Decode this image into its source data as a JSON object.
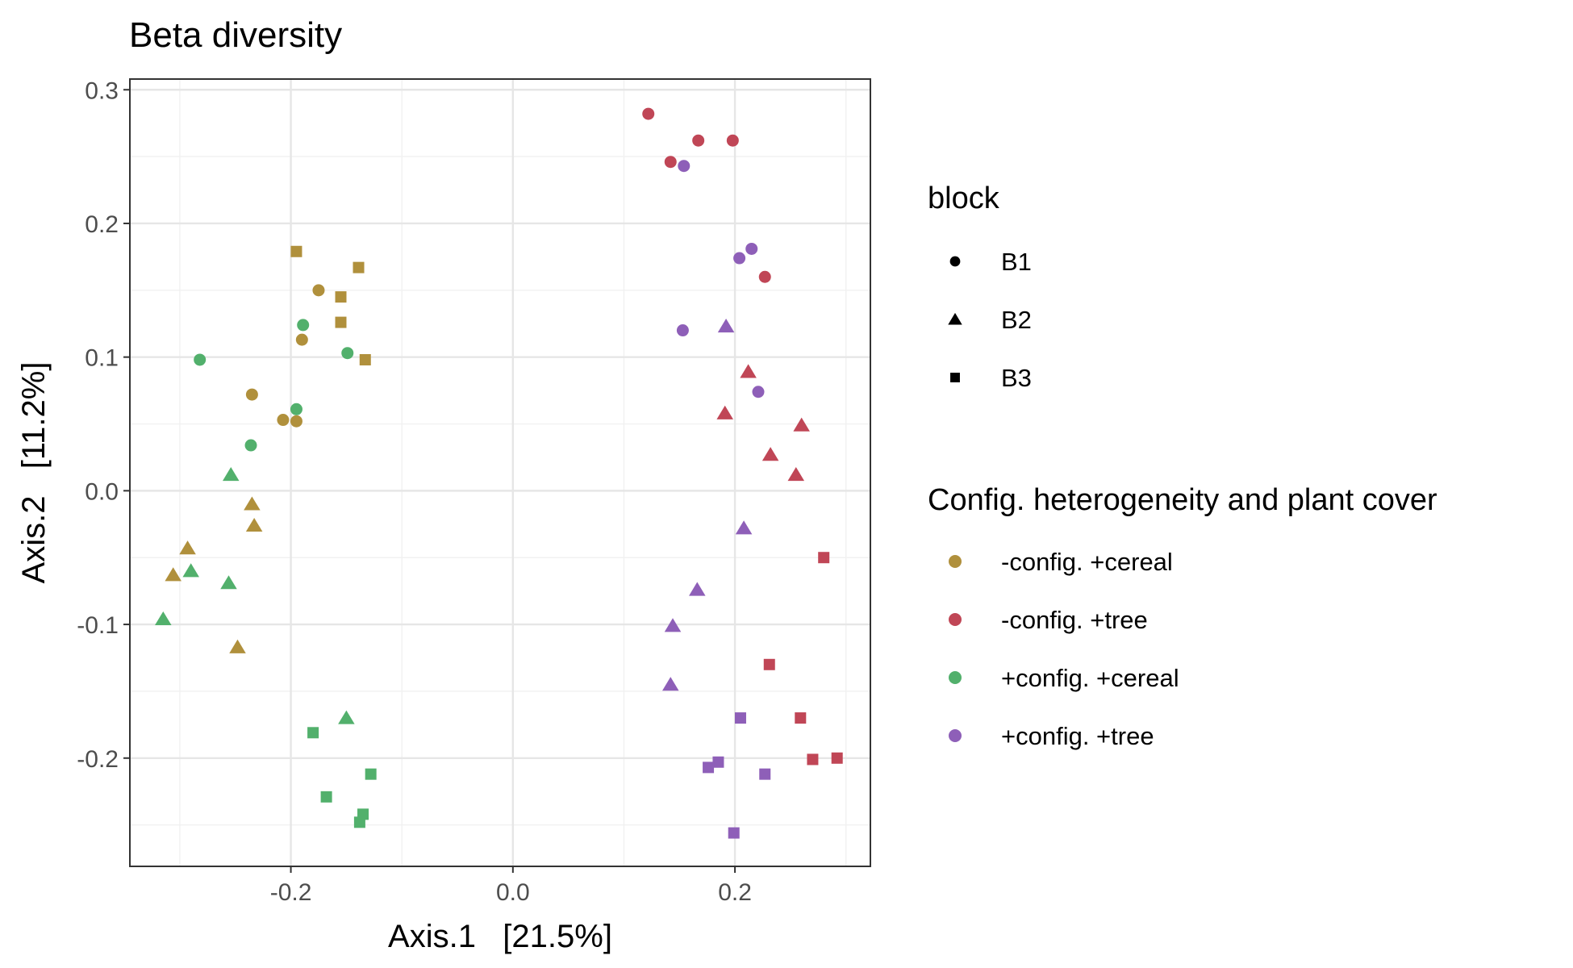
{
  "chart_data": {
    "type": "scatter",
    "title": "Beta diversity",
    "xlabel": "Axis.1   [21.5%]",
    "ylabel": "Axis.2   [11.2%]",
    "xlim": [
      -0.345,
      0.322
    ],
    "ylim": [
      -0.281,
      0.308
    ],
    "x_ticks": [
      -0.2,
      0.0,
      0.2
    ],
    "x_tick_labels": [
      "-0.2",
      "0.0",
      "0.2"
    ],
    "y_ticks": [
      -0.2,
      -0.1,
      0.0,
      0.1,
      0.2,
      0.3
    ],
    "y_tick_labels": [
      "-0.2",
      "-0.1",
      "0.0",
      "0.1",
      "0.2",
      "0.3"
    ],
    "grid": true,
    "legend_position": "right",
    "shape_legend": {
      "title": "block",
      "items": [
        {
          "label": "B1",
          "shape": "circle"
        },
        {
          "label": "B2",
          "shape": "triangle"
        },
        {
          "label": "B3",
          "shape": "square"
        }
      ]
    },
    "color_legend": {
      "title": "Config. heterogeneity and plant cover",
      "items": [
        {
          "label": "-config. +cereal",
          "color": "#B0903C"
        },
        {
          "label": "-config. +tree",
          "color": "#C04656"
        },
        {
          "label": "+config. +cereal",
          "color": "#52B06C"
        },
        {
          "label": "+config. +tree",
          "color": "#8E5FB8"
        }
      ]
    },
    "series": [
      {
        "group": "-config. +cereal",
        "block": "B1",
        "points": [
          [
            -0.175,
            0.15
          ],
          [
            -0.19,
            0.113
          ],
          [
            -0.235,
            0.072
          ],
          [
            -0.207,
            0.053
          ],
          [
            -0.195,
            0.052
          ]
        ]
      },
      {
        "group": "-config. +cereal",
        "block": "B2",
        "points": [
          [
            -0.235,
            -0.01
          ],
          [
            -0.233,
            -0.026
          ],
          [
            -0.293,
            -0.043
          ],
          [
            -0.306,
            -0.063
          ],
          [
            -0.248,
            -0.117
          ]
        ]
      },
      {
        "group": "-config. +cereal",
        "block": "B3",
        "points": [
          [
            -0.195,
            0.179
          ],
          [
            -0.139,
            0.167
          ],
          [
            -0.155,
            0.145
          ],
          [
            -0.155,
            0.126
          ],
          [
            -0.133,
            0.098
          ]
        ]
      },
      {
        "group": "-config. +tree",
        "block": "B1",
        "points": [
          [
            0.122,
            0.282
          ],
          [
            0.142,
            0.246
          ],
          [
            0.167,
            0.262
          ],
          [
            0.198,
            0.262
          ],
          [
            0.227,
            0.16
          ]
        ]
      },
      {
        "group": "-config. +tree",
        "block": "B2",
        "points": [
          [
            0.212,
            0.089
          ],
          [
            0.191,
            0.058
          ],
          [
            0.26,
            0.049
          ],
          [
            0.232,
            0.027
          ],
          [
            0.255,
            0.012
          ]
        ]
      },
      {
        "group": "-config. +tree",
        "block": "B3",
        "points": [
          [
            0.28,
            -0.05
          ],
          [
            0.231,
            -0.13
          ],
          [
            0.259,
            -0.17
          ],
          [
            0.27,
            -0.201
          ],
          [
            0.292,
            -0.2
          ]
        ]
      },
      {
        "group": "+config. +cereal",
        "block": "B1",
        "points": [
          [
            -0.282,
            0.098
          ],
          [
            -0.189,
            0.124
          ],
          [
            -0.149,
            0.103
          ],
          [
            -0.195,
            0.061
          ],
          [
            -0.236,
            0.034
          ]
        ]
      },
      {
        "group": "+config. +cereal",
        "block": "B2",
        "points": [
          [
            -0.254,
            0.012
          ],
          [
            -0.29,
            -0.06
          ],
          [
            -0.256,
            -0.069
          ],
          [
            -0.315,
            -0.096
          ],
          [
            -0.15,
            -0.17
          ]
        ]
      },
      {
        "group": "+config. +cereal",
        "block": "B3",
        "points": [
          [
            -0.18,
            -0.181
          ],
          [
            -0.168,
            -0.229
          ],
          [
            -0.128,
            -0.212
          ],
          [
            -0.135,
            -0.242
          ],
          [
            -0.138,
            -0.248
          ]
        ]
      },
      {
        "group": "+config. +tree",
        "block": "B1",
        "points": [
          [
            0.154,
            0.243
          ],
          [
            0.215,
            0.181
          ],
          [
            0.204,
            0.174
          ],
          [
            0.153,
            0.12
          ],
          [
            0.221,
            0.074
          ]
        ]
      },
      {
        "group": "+config. +tree",
        "block": "B2",
        "points": [
          [
            0.192,
            0.123
          ],
          [
            0.208,
            -0.028
          ],
          [
            0.166,
            -0.074
          ],
          [
            0.144,
            -0.101
          ],
          [
            0.142,
            -0.145
          ]
        ]
      },
      {
        "group": "+config. +tree",
        "block": "B3",
        "points": [
          [
            0.205,
            -0.17
          ],
          [
            0.185,
            -0.203
          ],
          [
            0.176,
            -0.207
          ],
          [
            0.227,
            -0.212
          ],
          [
            0.199,
            -0.256
          ]
        ]
      }
    ]
  }
}
